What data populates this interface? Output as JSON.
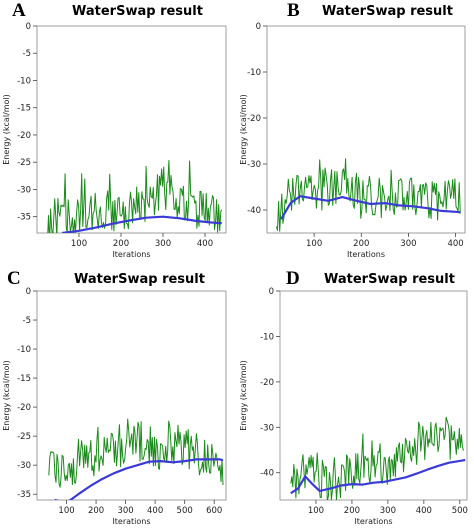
{
  "chart_data": [
    {
      "panel": "A",
      "type": "line",
      "title": "WaterSwap result",
      "xlabel": "Iterations",
      "ylabel": "Energy (kcal/mol)",
      "xlim": [
        0,
        450
      ],
      "ylim": [
        -38,
        0
      ],
      "xticks": [
        100,
        200,
        300,
        400
      ],
      "yticks": [
        0,
        -5,
        -10,
        -15,
        -20,
        -25,
        -30,
        -35
      ],
      "series": [
        {
          "color": "#1a8a1a",
          "style": "noisy",
          "x": [
            20,
            40,
            60,
            80,
            100,
            120,
            140,
            160,
            180,
            200,
            220,
            240,
            260,
            280,
            300,
            320,
            340,
            360,
            380,
            400,
            420,
            440
          ],
          "values": [
            -36.5,
            -35.5,
            -35,
            -34.5,
            -35,
            -33.5,
            -34,
            -33,
            -34,
            -33,
            -33.5,
            -32.5,
            -32,
            -31,
            -29,
            -31,
            -32,
            -33,
            -33.5,
            -34,
            -34,
            -35
          ]
        },
        {
          "color": "#3a3ad6",
          "style": "smooth",
          "x": [
            60,
            100,
            140,
            180,
            220,
            260,
            300,
            340,
            380,
            420,
            440
          ],
          "values": [
            -38,
            -37.6,
            -37,
            -36.3,
            -35.7,
            -35.2,
            -35,
            -35.3,
            -35.8,
            -36.1,
            -36.2
          ]
        }
      ]
    },
    {
      "panel": "B",
      "type": "line",
      "title": "WaterSwap result",
      "xlabel": "Iterations",
      "ylabel": "Energy (kcal/mol)",
      "xlim": [
        0,
        420
      ],
      "ylim": [
        -45,
        0
      ],
      "xticks": [
        100,
        200,
        300,
        400
      ],
      "yticks": [
        0,
        -10,
        -20,
        -30,
        -40
      ],
      "series": [
        {
          "color": "#1a8a1a",
          "style": "noisy",
          "x": [
            20,
            40,
            60,
            80,
            100,
            120,
            140,
            160,
            180,
            200,
            220,
            240,
            260,
            280,
            300,
            320,
            340,
            360,
            380,
            400,
            410
          ],
          "values": [
            -42,
            -38,
            -35,
            -33,
            -36,
            -35,
            -34,
            -33,
            -35,
            -37,
            -36,
            -37,
            -38,
            -37,
            -36,
            -38,
            -37,
            -38,
            -37,
            -36,
            -38
          ]
        },
        {
          "color": "#3a3ad6",
          "style": "smooth",
          "x": [
            30,
            50,
            70,
            100,
            130,
            160,
            190,
            220,
            250,
            280,
            310,
            340,
            370,
            400,
            410
          ],
          "values": [
            -42,
            -38.5,
            -37,
            -37.5,
            -38,
            -37.2,
            -38,
            -38.7,
            -38.5,
            -39,
            -39.2,
            -39.6,
            -40.2,
            -40.4,
            -40.5
          ]
        }
      ]
    },
    {
      "panel": "C",
      "type": "line",
      "title": "WaterSwap result",
      "xlabel": "Iterations",
      "ylabel": "Energy (kcal/mol)",
      "xlim": [
        0,
        640
      ],
      "ylim": [
        -36,
        0
      ],
      "xticks": [
        100,
        200,
        300,
        400,
        500,
        600
      ],
      "yticks": [
        0,
        -5,
        -10,
        -15,
        -20,
        -25,
        -30,
        -35
      ],
      "series": [
        {
          "color": "#1a8a1a",
          "style": "noisy",
          "x": [
            40,
            80,
            120,
            160,
            200,
            240,
            280,
            320,
            360,
            400,
            440,
            480,
            520,
            560,
            600,
            630
          ],
          "values": [
            -31,
            -30,
            -31,
            -28,
            -29,
            -28,
            -27,
            -24,
            -26,
            -27,
            -28,
            -26,
            -27,
            -28,
            -29,
            -30
          ]
        },
        {
          "color": "#3a3ad6",
          "style": "smooth",
          "x": [
            60,
            100,
            140,
            180,
            220,
            260,
            300,
            340,
            380,
            420,
            460,
            500,
            540,
            580,
            620,
            630
          ],
          "values": [
            -36,
            -36.5,
            -35,
            -33.6,
            -32.4,
            -31.4,
            -30.6,
            -30,
            -29.4,
            -29.3,
            -29.5,
            -29.3,
            -29,
            -29,
            -29,
            -29.2
          ]
        }
      ]
    },
    {
      "panel": "D",
      "type": "line",
      "title": "WaterSwap result",
      "xlabel": "Iterations",
      "ylabel": "Energy (kcal/mol)",
      "xlim": [
        0,
        520
      ],
      "ylim": [
        -46,
        0
      ],
      "xticks": [
        100,
        200,
        300,
        400,
        500
      ],
      "yticks": [
        0,
        -10,
        -20,
        -30,
        -40
      ],
      "series": [
        {
          "color": "#1a8a1a",
          "style": "noisy",
          "x": [
            30,
            60,
            90,
            120,
            150,
            180,
            210,
            240,
            270,
            300,
            330,
            360,
            390,
            420,
            450,
            480,
            510
          ],
          "values": [
            -42,
            -39,
            -40,
            -41,
            -42,
            -40,
            -39,
            -38,
            -37,
            -38,
            -36,
            -35,
            -33,
            -32,
            -31,
            -33,
            -35
          ]
        },
        {
          "color": "#3a3ad6",
          "style": "smooth",
          "x": [
            30,
            50,
            70,
            90,
            110,
            140,
            170,
            200,
            230,
            260,
            290,
            320,
            350,
            380,
            410,
            440,
            470,
            500,
            515
          ],
          "values": [
            -44.5,
            -43.5,
            -40.8,
            -42.5,
            -44,
            -43.5,
            -42.8,
            -42.5,
            -42.6,
            -42.2,
            -42,
            -41.5,
            -41,
            -40.2,
            -39.3,
            -38.5,
            -37.8,
            -37.4,
            -37.2
          ]
        }
      ]
    }
  ]
}
